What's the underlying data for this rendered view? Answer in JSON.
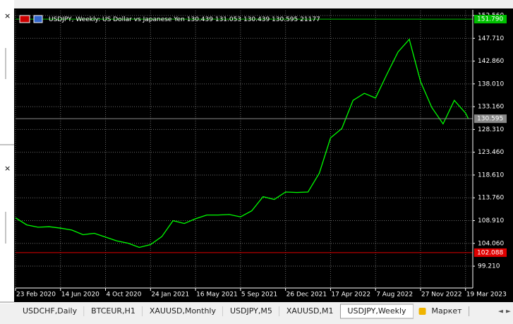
{
  "header": {
    "symbol": "USDJPY, Weekly: US Dollar vs Japanese Yen",
    "ohlc": [
      130.439,
      131.053,
      130.439,
      130.595
    ],
    "volume": 21177
  },
  "tabs": [
    "USDCHF,Daily",
    "BTCEUR,H1",
    "XAUUSD,Monthly",
    "USDJPY,M5",
    "XAUUSD,M1",
    "USDJPY,Weekly",
    "Маркет"
  ],
  "active_tab": 5,
  "chart_data": {
    "type": "line",
    "grid": true,
    "series": [
      {
        "name": "USDJPY",
        "color": "#00ff00",
        "x": [
          "2020-02-23",
          "2020-03-22",
          "2020-04-19",
          "2020-05-17",
          "2020-06-14",
          "2020-07-12",
          "2020-08-09",
          "2020-09-06",
          "2020-10-04",
          "2020-11-01",
          "2020-11-29",
          "2020-12-27",
          "2021-01-24",
          "2021-02-21",
          "2021-03-21",
          "2021-04-18",
          "2021-05-16",
          "2021-06-13",
          "2021-07-11",
          "2021-08-08",
          "2021-09-05",
          "2021-10-03",
          "2021-10-31",
          "2021-11-28",
          "2021-12-26",
          "2022-01-23",
          "2022-02-20",
          "2022-03-20",
          "2022-04-17",
          "2022-05-15",
          "2022-06-12",
          "2022-07-10",
          "2022-08-07",
          "2022-09-04",
          "2022-10-02",
          "2022-10-30",
          "2022-11-27",
          "2022-12-25",
          "2023-01-22",
          "2023-02-19",
          "2023-03-19",
          "2023-03-26"
        ],
        "values": [
          109.5,
          108.0,
          107.5,
          107.6,
          107.3,
          106.9,
          105.9,
          106.2,
          105.4,
          104.6,
          104.1,
          103.2,
          103.8,
          105.5,
          108.9,
          108.3,
          109.3,
          110.1,
          110.1,
          110.2,
          109.7,
          111.0,
          114.0,
          113.4,
          115.0,
          114.9,
          115.0,
          119.0,
          126.5,
          128.5,
          134.5,
          136.0,
          135.0,
          140.0,
          144.8,
          147.5,
          138.5,
          133.0,
          129.5,
          134.5,
          131.8,
          130.6
        ]
      }
    ],
    "xlim": [
      "2020-02-23",
      "2023-04-06"
    ],
    "xticks": [
      {
        "value": "2020-02-23",
        "label": "23 Feb 2020"
      },
      {
        "value": "2020-06-14",
        "label": "14 Jun 2020"
      },
      {
        "value": "2020-10-04",
        "label": "4 Oct 2020"
      },
      {
        "value": "2021-01-24",
        "label": "24 Jan 2021"
      },
      {
        "value": "2021-05-16",
        "label": "16 May 2021"
      },
      {
        "value": "2021-09-05",
        "label": "5 Sep 2021"
      },
      {
        "value": "2021-12-26",
        "label": "26 Dec 2021"
      },
      {
        "value": "2022-04-17",
        "label": "17 Apr 2022"
      },
      {
        "value": "2022-08-07",
        "label": "7 Aug 2022"
      },
      {
        "value": "2022-11-27",
        "label": "27 Nov 2022"
      },
      {
        "value": "2023-03-19",
        "label": "19 Mar 2023"
      }
    ],
    "ylim": [
      94.56,
      153.61
    ],
    "yticks": [
      {
        "value": 152.56,
        "label": "152.560"
      },
      {
        "value": 147.71,
        "label": "147.710"
      },
      {
        "value": 142.86,
        "label": "142.860"
      },
      {
        "value": 138.01,
        "label": "138.010"
      },
      {
        "value": 133.16,
        "label": "133.160"
      },
      {
        "value": 128.31,
        "label": "128.310"
      },
      {
        "value": 123.46,
        "label": "123.460"
      },
      {
        "value": 118.61,
        "label": "118.610"
      },
      {
        "value": 113.76,
        "label": "113.760"
      },
      {
        "value": 108.91,
        "label": "108.910"
      },
      {
        "value": 104.06,
        "label": "104.060"
      },
      {
        "value": 99.21,
        "label": "99.210"
      }
    ],
    "levels": [
      {
        "value": 151.79,
        "label": "151.790",
        "color": "#00c000"
      },
      {
        "value": 130.595,
        "color": "#8a8a8a"
      },
      {
        "value": 102.088,
        "color": "#e00000"
      }
    ]
  }
}
